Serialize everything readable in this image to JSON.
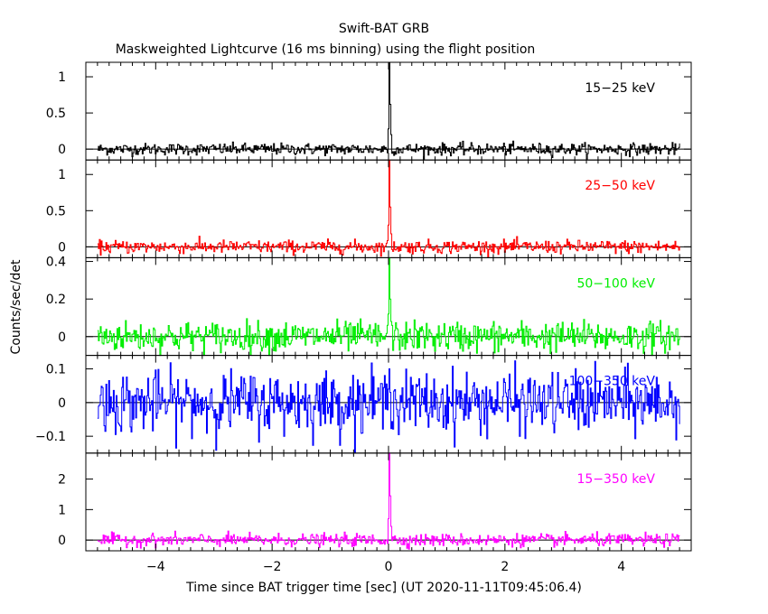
{
  "chart_data": {
    "type": "line",
    "title": "Swift-BAT GRB",
    "subtitle": "Maskweighted Lightcurve (16 ms binning) using the flight position",
    "xlabel": "Time since BAT trigger time [sec] (UT 2020-11-11T09:45:06.4)",
    "ylabel": "Counts/sec/det",
    "xlim": [
      -5.2,
      5.2
    ],
    "x_ticks": [
      -4,
      -2,
      0,
      2,
      4
    ],
    "x_tick_labels": [
      "−4",
      "−2",
      "0",
      "2",
      "4"
    ],
    "binning_sec": 0.016,
    "data_range": [
      -5.0,
      5.0
    ],
    "panels": [
      {
        "name": "15−25 keV",
        "color": "#000000",
        "ylim": [
          -0.15,
          1.2
        ],
        "y_ticks": [
          0,
          0.5,
          1
        ],
        "y_tick_labels": [
          "0",
          "0.5",
          "1"
        ],
        "noise_sigma": 0.04,
        "peak": {
          "x": 0.0,
          "values": [
            0.28,
            1.2,
            0.62,
            0.2
          ]
        }
      },
      {
        "name": "25−50 keV",
        "color": "#ff0000",
        "ylim": [
          -0.15,
          1.2
        ],
        "y_ticks": [
          0,
          0.5,
          1
        ],
        "y_tick_labels": [
          "0",
          "0.5",
          "1"
        ],
        "noise_sigma": 0.045,
        "peak": {
          "x": 0.0,
          "values": [
            0.3,
            1.2,
            0.55,
            0.18
          ]
        }
      },
      {
        "name": "50−100 keV",
        "color": "#00ee00",
        "ylim": [
          -0.1,
          0.42
        ],
        "y_ticks": [
          0,
          0.2,
          0.4
        ],
        "y_tick_labels": [
          "0",
          "0.2",
          "0.4"
        ],
        "noise_sigma": 0.04,
        "peak": {
          "x": 0.0,
          "values": [
            0.12,
            0.42,
            0.2,
            0.08
          ]
        }
      },
      {
        "name": "100−350 keV",
        "color": "#0000ff",
        "ylim": [
          -0.15,
          0.14
        ],
        "y_ticks": [
          -0.1,
          0,
          0.1
        ],
        "y_tick_labels": [
          "−0.1",
          "0",
          "0.1"
        ],
        "noise_sigma": 0.045,
        "peak": {
          "x": 0.0,
          "values": [
            0.04,
            0.1,
            0.03
          ]
        }
      },
      {
        "name": "15−350 keV",
        "color": "#ff00ff",
        "ylim": [
          -0.35,
          2.85
        ],
        "y_ticks": [
          0,
          1,
          2
        ],
        "y_tick_labels": [
          "0",
          "1",
          "2"
        ],
        "noise_sigma": 0.1,
        "peak": {
          "x": 0.0,
          "values": [
            0.7,
            2.85,
            1.45,
            0.45
          ]
        }
      }
    ]
  }
}
